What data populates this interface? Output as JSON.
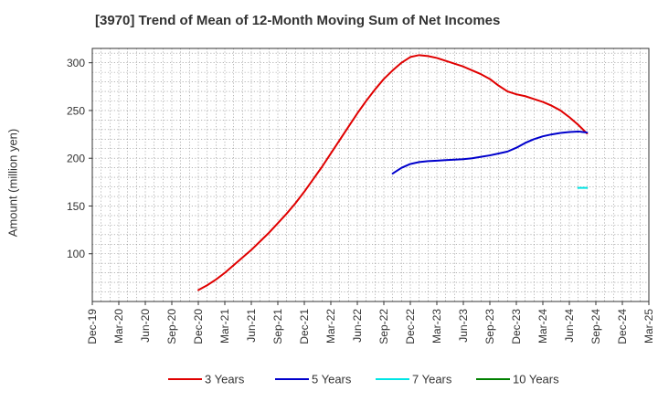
{
  "chart_data": {
    "type": "line",
    "title": "[3970]  Trend of Mean of 12-Month Moving Sum of Net Incomes",
    "xlabel": "",
    "ylabel": "Amount (million yen)",
    "ylim": [
      50,
      315
    ],
    "yticks": [
      100,
      150,
      200,
      250,
      300
    ],
    "xticks": [
      "Dec-19",
      "Mar-20",
      "Jun-20",
      "Sep-20",
      "Dec-20",
      "Mar-21",
      "Jun-21",
      "Sep-21",
      "Dec-21",
      "Mar-22",
      "Jun-22",
      "Sep-22",
      "Dec-22",
      "Mar-23",
      "Jun-23",
      "Sep-23",
      "Dec-23",
      "Mar-24",
      "Jun-24",
      "Sep-24",
      "Dec-24",
      "Mar-25"
    ],
    "grid": true,
    "legend_position": "bottom",
    "series": [
      {
        "name": "3 Years",
        "color": "#e00000",
        "points": [
          [
            "2020-12",
            62
          ],
          [
            "2021-01",
            67
          ],
          [
            "2021-02",
            73
          ],
          [
            "2021-03",
            80
          ],
          [
            "2021-04",
            88
          ],
          [
            "2021-05",
            96
          ],
          [
            "2021-06",
            104
          ],
          [
            "2021-07",
            113
          ],
          [
            "2021-08",
            122
          ],
          [
            "2021-09",
            132
          ],
          [
            "2021-10",
            142
          ],
          [
            "2021-11",
            153
          ],
          [
            "2021-12",
            165
          ],
          [
            "2022-01",
            178
          ],
          [
            "2022-02",
            191
          ],
          [
            "2022-03",
            205
          ],
          [
            "2022-04",
            219
          ],
          [
            "2022-05",
            233
          ],
          [
            "2022-06",
            247
          ],
          [
            "2022-07",
            260
          ],
          [
            "2022-08",
            272
          ],
          [
            "2022-09",
            283
          ],
          [
            "2022-10",
            292
          ],
          [
            "2022-11",
            300
          ],
          [
            "2022-12",
            306
          ],
          [
            "2023-01",
            308
          ],
          [
            "2023-02",
            307
          ],
          [
            "2023-03",
            305
          ],
          [
            "2023-04",
            302
          ],
          [
            "2023-05",
            299
          ],
          [
            "2023-06",
            296
          ],
          [
            "2023-07",
            292
          ],
          [
            "2023-08",
            288
          ],
          [
            "2023-09",
            283
          ],
          [
            "2023-10",
            276
          ],
          [
            "2023-11",
            270
          ],
          [
            "2023-12",
            267
          ],
          [
            "2024-01",
            265
          ],
          [
            "2024-02",
            262
          ],
          [
            "2024-03",
            259
          ],
          [
            "2024-04",
            255
          ],
          [
            "2024-05",
            250
          ],
          [
            "2024-06",
            243
          ],
          [
            "2024-07",
            235
          ],
          [
            "2024-08",
            226
          ]
        ]
      },
      {
        "name": "5 Years",
        "color": "#0000cc",
        "points": [
          [
            "2022-10",
            184
          ],
          [
            "2022-11",
            190
          ],
          [
            "2022-12",
            194
          ],
          [
            "2023-01",
            196
          ],
          [
            "2023-02",
            197
          ],
          [
            "2023-03",
            197.5
          ],
          [
            "2023-04",
            198
          ],
          [
            "2023-05",
            198.5
          ],
          [
            "2023-06",
            199
          ],
          [
            "2023-07",
            200
          ],
          [
            "2023-08",
            201.5
          ],
          [
            "2023-09",
            203
          ],
          [
            "2023-10",
            205
          ],
          [
            "2023-11",
            207
          ],
          [
            "2023-12",
            211
          ],
          [
            "2024-01",
            216
          ],
          [
            "2024-02",
            220
          ],
          [
            "2024-03",
            223
          ],
          [
            "2024-04",
            225
          ],
          [
            "2024-05",
            226.5
          ],
          [
            "2024-06",
            227.5
          ],
          [
            "2024-07",
            228
          ],
          [
            "2024-08",
            227
          ]
        ]
      },
      {
        "name": "7 Years",
        "color": "#00e5e5",
        "points": [
          [
            "2024-07",
            169
          ],
          [
            "2024-08",
            169
          ]
        ]
      },
      {
        "name": "10 Years",
        "color": "#008000",
        "points": []
      }
    ]
  }
}
